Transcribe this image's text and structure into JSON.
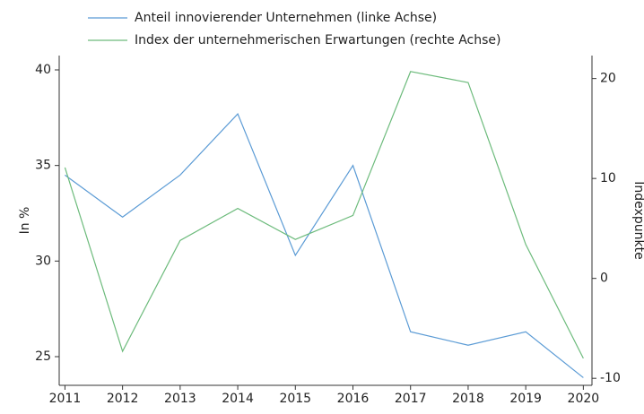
{
  "chart_data": {
    "type": "line",
    "x": [
      2011,
      2012,
      2013,
      2014,
      2015,
      2016,
      2017,
      2018,
      2019,
      2020
    ],
    "xlim": [
      2010.9,
      2020.15
    ],
    "xticks": [
      2011,
      2012,
      2013,
      2014,
      2015,
      2016,
      2017,
      2018,
      2019,
      2020
    ],
    "ylabel": "In %",
    "y2label": "Indexpunkte",
    "ylim": [
      23.5,
      40.75
    ],
    "yticks": [
      25,
      30,
      35,
      40
    ],
    "y2lim": [
      -10.7,
      22.3
    ],
    "y2ticks": [
      -10,
      0,
      10,
      20
    ],
    "series": [
      {
        "name": "Anteil innovierender Unternehmen (linke Achse)",
        "color": "#5b9bd5",
        "values": [
          34.5,
          32.3,
          34.5,
          37.7,
          30.3,
          35.0,
          26.3,
          25.6,
          26.3,
          23.9
        ]
      },
      {
        "name": "Index der unternehmerischen Erwartungen (rechte Achse)",
        "color": "#6dbb7c",
        "axis": "y2",
        "values": [
          11.1,
          -7.3,
          3.8,
          7.0,
          3.9,
          6.3,
          20.7,
          19.6,
          3.4,
          -8.0
        ]
      }
    ]
  }
}
